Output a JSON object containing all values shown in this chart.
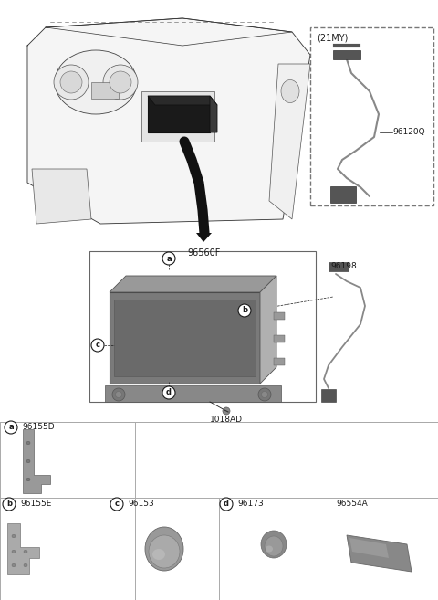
{
  "bg_color": "#ffffff",
  "text_color": "#1a1a1a",
  "grid_color": "#aaaaaa",
  "part_labels": {
    "main": "96560F",
    "a": "96155D",
    "b": "96155E",
    "c": "96153",
    "d": "96173",
    "e": "96554A",
    "f": "96198",
    "g": "96120Q",
    "h": "1018AD"
  },
  "part_colors": {
    "dark": "#555555",
    "mid": "#888888",
    "light": "#aaaaaa",
    "vlight": "#cccccc",
    "black": "#111111"
  }
}
